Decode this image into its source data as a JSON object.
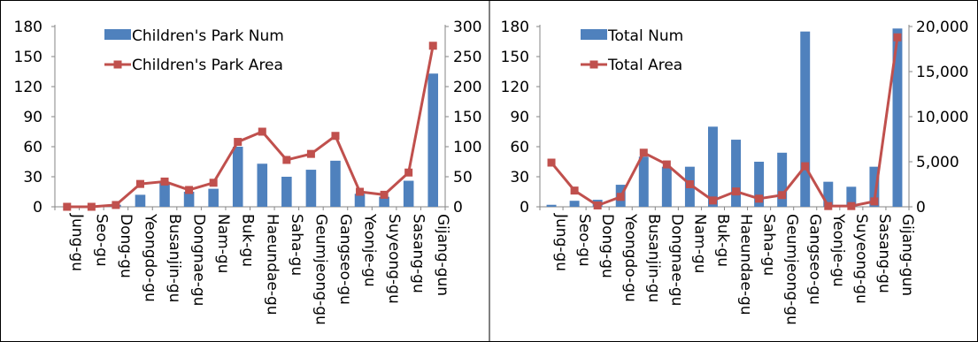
{
  "chart_data": [
    {
      "type": "bar+line",
      "categories": [
        "Jung-gu",
        "Seo-gu",
        "Dong-gu",
        "Yeongdo-gu",
        "Busanjin-gu",
        "Dongnae-gu",
        "Nam-gu",
        "Buk-gu",
        "Haeundae-gu",
        "Saha-gu",
        "Geumjeong-gu",
        "Gangseo-gu",
        "Yeonje-gu",
        "Suyeong-gu",
        "Sasang-gu",
        "Gijang-gun"
      ],
      "series": [
        {
          "name": "Children's Park Num",
          "kind": "bar",
          "axis": "left",
          "color": "#4F81BD",
          "values": [
            0,
            0,
            2,
            12,
            24,
            15,
            18,
            60,
            43,
            30,
            37,
            46,
            13,
            10,
            26,
            133
          ]
        },
        {
          "name": "Children's Park Area",
          "kind": "line",
          "axis": "right",
          "color": "#C0504D",
          "values": [
            0,
            0,
            3,
            38,
            42,
            28,
            40,
            108,
            125,
            78,
            88,
            118,
            25,
            20,
            57,
            268
          ]
        }
      ],
      "ylim_left": [
        0,
        180
      ],
      "yticks_left": [
        0,
        30,
        60,
        90,
        120,
        150,
        180
      ],
      "ylim_right": [
        0,
        300
      ],
      "yticks_right": [
        0,
        50,
        100,
        150,
        200,
        250,
        300
      ],
      "ytick_labels_left": [
        "0",
        "30",
        "60",
        "90",
        "120",
        "150",
        "180"
      ],
      "ytick_labels_right": [
        "0",
        "50",
        "100",
        "150",
        "200",
        "250",
        "300"
      ],
      "legend_position": "top-left"
    },
    {
      "type": "bar+line",
      "categories": [
        "Jung-gu",
        "Seo-gu",
        "Dong-gu",
        "Yeongdo-gu",
        "Busanjin-gu",
        "Dongnae-gu",
        "Nam-gu",
        "Buk-gu",
        "Haeundae-gu",
        "Saha-gu",
        "Geumjeong-gu",
        "Gangseo-gu",
        "Yeonje-gu",
        "Suyeong-gu",
        "Sasang-gu",
        "Gijang-gun"
      ],
      "series": [
        {
          "name": "Total Num",
          "kind": "bar",
          "axis": "left",
          "color": "#4F81BD",
          "values": [
            2,
            6,
            7,
            22,
            50,
            40,
            40,
            80,
            67,
            45,
            54,
            175,
            25,
            20,
            40,
            178
          ]
        },
        {
          "name": "Total Area",
          "kind": "line",
          "axis": "right",
          "color": "#C0504D",
          "values": [
            4900,
            1800,
            150,
            1100,
            6000,
            4700,
            2500,
            700,
            1700,
            900,
            1300,
            4500,
            80,
            80,
            600,
            18800
          ]
        }
      ],
      "ylim_left": [
        0,
        180
      ],
      "yticks_left": [
        0,
        30,
        60,
        90,
        120,
        150,
        180
      ],
      "ylim_right": [
        0,
        20000
      ],
      "yticks_right": [
        0,
        5000,
        10000,
        15000,
        20000
      ],
      "ytick_labels_left": [
        "0",
        "30",
        "60",
        "90",
        "120",
        "150",
        "180"
      ],
      "ytick_labels_right": [
        "0",
        "5,000",
        "10,000",
        "15,000",
        "20,000"
      ],
      "legend_position": "top-left"
    }
  ]
}
